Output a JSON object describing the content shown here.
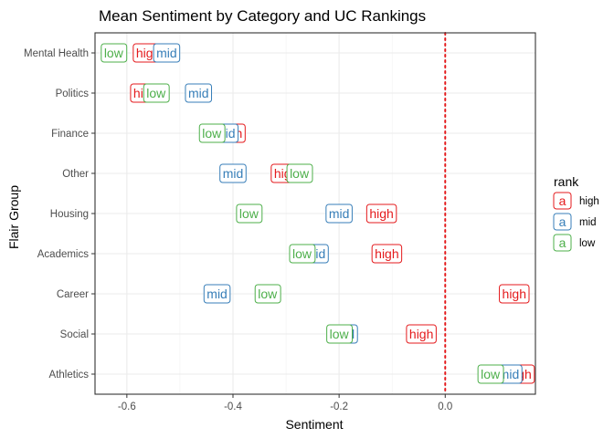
{
  "chart_data": {
    "type": "scatter",
    "title": "Mean Sentiment by Category and UC Rankings",
    "xlabel": "Sentiment",
    "ylabel": "Flair Group",
    "xlim": [
      -0.66,
      0.17
    ],
    "x_ticks": [
      -0.6,
      -0.4,
      -0.2,
      0.0
    ],
    "x_tick_labels": [
      "-0.6",
      "-0.4",
      "-0.2",
      "0.0"
    ],
    "categories": [
      "Mental Health",
      "Politics",
      "Finance",
      "Other",
      "Housing",
      "Academics",
      "Career",
      "Social",
      "Athletics"
    ],
    "reference_line": {
      "x": 0.0,
      "color": "#e41a1c",
      "style": "dotted"
    },
    "grid": true,
    "legend": {
      "title": "rank",
      "position": "right",
      "glyph": "a"
    },
    "series": [
      {
        "name": "high",
        "color": "#e41a1c",
        "values": [
          -0.56,
          -0.565,
          -0.405,
          -0.3,
          -0.12,
          -0.11,
          0.13,
          -0.045,
          0.14
        ]
      },
      {
        "name": "mid",
        "color": "#377eb8",
        "values": [
          -0.525,
          -0.465,
          -0.415,
          -0.4,
          -0.2,
          -0.245,
          -0.43,
          -0.19,
          0.12
        ]
      },
      {
        "name": "low",
        "color": "#4daf4a",
        "values": [
          -0.625,
          -0.545,
          -0.44,
          -0.275,
          -0.37,
          -0.27,
          -0.335,
          -0.2,
          0.085
        ]
      }
    ]
  }
}
